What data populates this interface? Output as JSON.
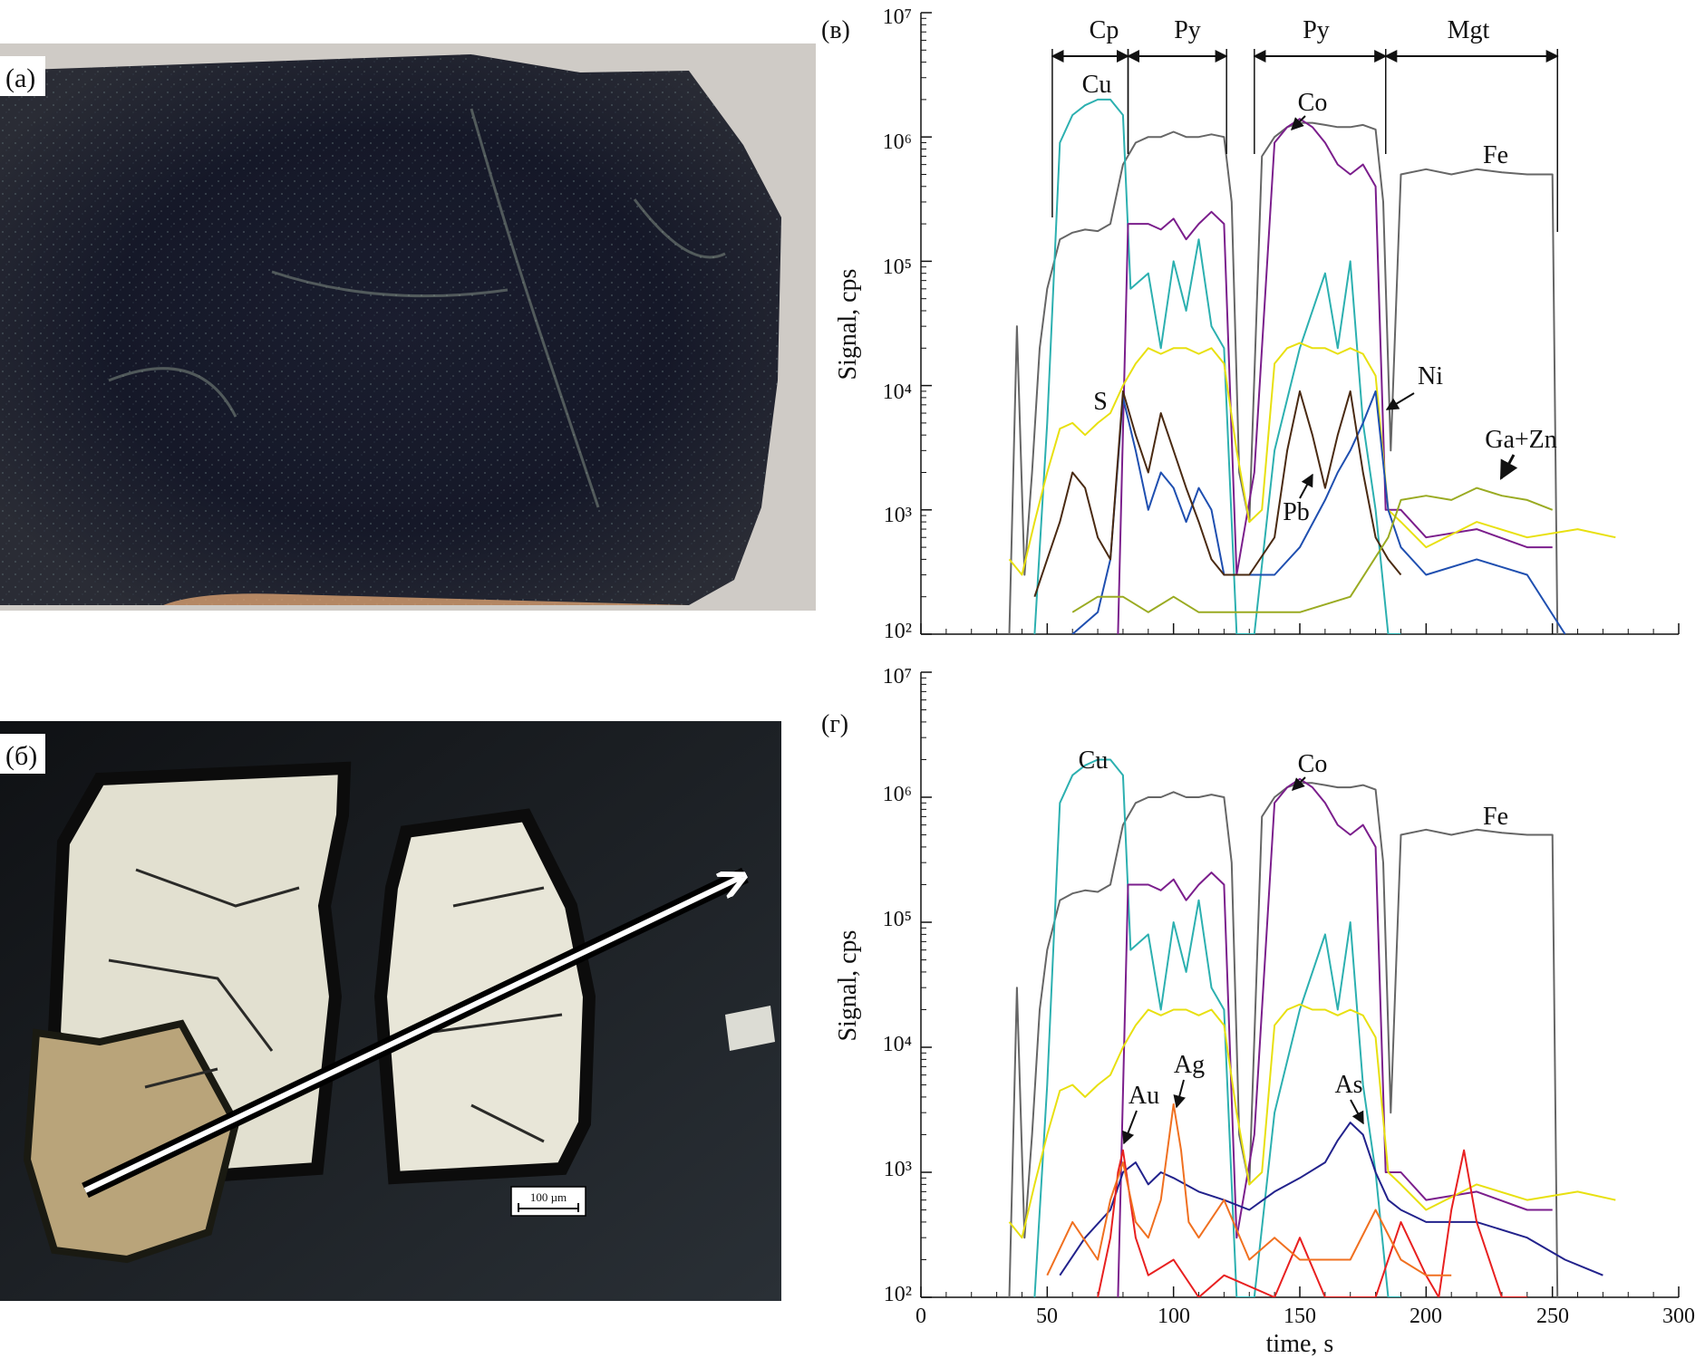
{
  "panels": {
    "a": {
      "label": "(a)"
    },
    "b": {
      "label": "(б)",
      "scalebar": "100 µm"
    },
    "v": {
      "label": "(в)",
      "ylabel": "Signal, cps",
      "ticks": {
        "y": [
          "10²",
          "10³",
          "10⁴",
          "10⁵",
          "10⁶",
          "10⁷"
        ]
      },
      "zones": [
        {
          "label": "Cp",
          "from": 52,
          "to": 82
        },
        {
          "label": "Py",
          "from": 82,
          "to": 121
        },
        {
          "label": "Py",
          "from": 132,
          "to": 184
        },
        {
          "label": "Mgt",
          "from": 184,
          "to": 252
        }
      ],
      "labels": {
        "cu": "Cu",
        "co": "Co",
        "fe": "Fe",
        "s": "S",
        "ni": "Ni",
        "pb": "Pb",
        "gazn": "Ga+Zn"
      }
    },
    "g": {
      "label": "(г)",
      "ylabel": "Signal, cps",
      "xlabel": "time, s",
      "ticks": {
        "y": [
          "10²",
          "10³",
          "10⁴",
          "10⁵",
          "10⁶",
          "10⁷"
        ],
        "x": [
          "0",
          "50",
          "100",
          "150",
          "200",
          "250",
          "300"
        ]
      },
      "labels": {
        "cu": "Cu",
        "co": "Co",
        "fe": "Fe",
        "au": "Au",
        "ag": "Ag",
        "as": "As"
      }
    }
  },
  "chart_data": [
    {
      "type": "line",
      "panel": "(в)",
      "ylabel": "Signal, cps",
      "yscale": "log",
      "ylim": [
        100,
        10000000
      ],
      "xlim": [
        0,
        300
      ],
      "grid": false,
      "series": [
        {
          "name": "Fe",
          "color": "#666666",
          "x": [
            35,
            38,
            41,
            44,
            47,
            50,
            55,
            60,
            65,
            70,
            75,
            80,
            85,
            90,
            95,
            100,
            105,
            110,
            115,
            120,
            123,
            126,
            130,
            135,
            140,
            145,
            150,
            155,
            160,
            165,
            170,
            175,
            180,
            183,
            186,
            190,
            200,
            210,
            220,
            230,
            240,
            250,
            252
          ],
          "y": [
            100,
            30000,
            300,
            2000,
            20000,
            60000,
            150000,
            170000,
            180000,
            175000,
            200000,
            600000,
            900000,
            1000000,
            1000000,
            1100000,
            1000000,
            1000000,
            1050000,
            1000000,
            300000,
            2000,
            800,
            700000,
            1000000,
            1200000,
            1300000,
            1300000,
            1250000,
            1200000,
            1200000,
            1250000,
            1150000,
            300000,
            3000,
            500000,
            550000,
            500000,
            550000,
            520000,
            500000,
            500000,
            100
          ]
        },
        {
          "name": "Cu",
          "color": "#2cb0b0",
          "x": [
            45,
            50,
            55,
            60,
            65,
            70,
            75,
            80,
            83,
            90,
            95,
            100,
            105,
            110,
            115,
            120,
            125,
            132,
            140,
            150,
            160,
            165,
            170,
            175,
            180,
            185,
            190
          ],
          "y": [
            100,
            5000,
            900000,
            1500000,
            1800000,
            2000000,
            2000000,
            1500000,
            60000,
            80000,
            20000,
            100000,
            40000,
            150000,
            30000,
            20000,
            100,
            100,
            3000,
            20000,
            80000,
            20000,
            100000,
            5000,
            1000,
            100,
            100
          ]
        },
        {
          "name": "Co",
          "color": "#7b1e8c",
          "x": [
            78,
            82,
            90,
            95,
            100,
            105,
            110,
            115,
            120,
            125,
            132,
            140,
            145,
            150,
            155,
            160,
            165,
            170,
            175,
            180,
            184,
            190,
            200,
            220,
            240,
            250
          ],
          "y": [
            100,
            200000,
            200000,
            180000,
            220000,
            150000,
            200000,
            250000,
            200000,
            300,
            2000,
            900000,
            1200000,
            1400000,
            1200000,
            900000,
            600000,
            500000,
            600000,
            400000,
            1000,
            1000,
            600,
            700,
            500,
            500
          ]
        },
        {
          "name": "S",
          "color": "#e8e010",
          "x": [
            35,
            40,
            45,
            50,
            55,
            60,
            65,
            70,
            75,
            80,
            85,
            90,
            95,
            100,
            105,
            110,
            115,
            120,
            125,
            130,
            135,
            140,
            145,
            150,
            155,
            160,
            165,
            170,
            175,
            180,
            185,
            190,
            200,
            220,
            240,
            260,
            275
          ],
          "y": [
            400,
            300,
            800,
            2000,
            4500,
            5000,
            4000,
            5000,
            6000,
            10000,
            15000,
            20000,
            18000,
            20000,
            20000,
            18000,
            20000,
            15000,
            3000,
            800,
            1000,
            15000,
            20000,
            22000,
            20000,
            20000,
            18000,
            20000,
            18000,
            12000,
            1000,
            800,
            500,
            800,
            600,
            700,
            600
          ]
        },
        {
          "name": "Ni",
          "color": "#1f4fb0",
          "x": [
            60,
            70,
            75,
            80,
            85,
            90,
            95,
            100,
            105,
            110,
            115,
            120,
            140,
            150,
            160,
            165,
            170,
            175,
            180,
            185,
            190,
            200,
            220,
            240,
            255
          ],
          "y": [
            100,
            150,
            400,
            8000,
            3000,
            1000,
            2000,
            1500,
            800,
            1500,
            1000,
            300,
            300,
            500,
            1200,
            2000,
            3000,
            5000,
            9000,
            1000,
            500,
            300,
            400,
            300,
            100
          ]
        },
        {
          "name": "Pb",
          "color": "#4a2a12",
          "x": [
            45,
            50,
            55,
            60,
            65,
            70,
            75,
            80,
            85,
            90,
            95,
            100,
            105,
            110,
            115,
            120,
            130,
            140,
            145,
            150,
            155,
            160,
            165,
            170,
            175,
            180,
            185,
            190
          ],
          "y": [
            200,
            400,
            800,
            2000,
            1500,
            600,
            400,
            9000,
            4000,
            2000,
            6000,
            3000,
            1500,
            800,
            400,
            300,
            300,
            600,
            3000,
            9000,
            4000,
            1500,
            4000,
            9000,
            2000,
            600,
            400,
            300
          ]
        },
        {
          "name": "Ga+Zn",
          "color": "#9aab22",
          "x": [
            60,
            70,
            80,
            90,
            100,
            110,
            120,
            130,
            150,
            170,
            185,
            190,
            200,
            210,
            220,
            230,
            240,
            250
          ],
          "y": [
            150,
            200,
            200,
            150,
            200,
            150,
            150,
            150,
            150,
            200,
            600,
            1200,
            1300,
            1200,
            1500,
            1300,
            1200,
            1000
          ]
        }
      ]
    },
    {
      "type": "line",
      "panel": "(г)",
      "ylabel": "Signal, cps",
      "xlabel": "time, s",
      "yscale": "log",
      "ylim": [
        100,
        10000000
      ],
      "xlim": [
        0,
        300
      ],
      "grid": false,
      "series": [
        {
          "name": "Fe",
          "color": "#666666",
          "x": [
            35,
            38,
            41,
            44,
            47,
            50,
            55,
            60,
            65,
            70,
            75,
            80,
            85,
            90,
            95,
            100,
            105,
            110,
            115,
            120,
            123,
            126,
            130,
            135,
            140,
            145,
            150,
            155,
            160,
            165,
            170,
            175,
            180,
            183,
            186,
            190,
            200,
            210,
            220,
            230,
            240,
            250,
            252
          ],
          "y": [
            100,
            30000,
            300,
            2000,
            20000,
            60000,
            150000,
            170000,
            180000,
            175000,
            200000,
            600000,
            900000,
            1000000,
            1000000,
            1100000,
            1000000,
            1000000,
            1050000,
            1000000,
            300000,
            2000,
            800,
            700000,
            1000000,
            1200000,
            1300000,
            1300000,
            1250000,
            1200000,
            1200000,
            1250000,
            1150000,
            300000,
            3000,
            500000,
            550000,
            500000,
            550000,
            520000,
            500000,
            500000,
            100
          ]
        },
        {
          "name": "Cu",
          "color": "#2cb0b0",
          "x": [
            45,
            50,
            55,
            60,
            65,
            70,
            75,
            80,
            83,
            90,
            95,
            100,
            105,
            110,
            115,
            120,
            125,
            132,
            140,
            150,
            160,
            165,
            170,
            175,
            180,
            185,
            190
          ],
          "y": [
            100,
            5000,
            900000,
            1500000,
            1800000,
            2000000,
            2000000,
            1500000,
            60000,
            80000,
            20000,
            100000,
            40000,
            150000,
            30000,
            20000,
            100,
            100,
            3000,
            20000,
            80000,
            20000,
            100000,
            5000,
            1000,
            100,
            100
          ]
        },
        {
          "name": "Co",
          "color": "#7b1e8c",
          "x": [
            78,
            82,
            90,
            95,
            100,
            105,
            110,
            115,
            120,
            125,
            132,
            140,
            145,
            150,
            155,
            160,
            165,
            170,
            175,
            180,
            184,
            190,
            200,
            220,
            240,
            250
          ],
          "y": [
            100,
            200000,
            200000,
            180000,
            220000,
            150000,
            200000,
            250000,
            200000,
            300,
            2000,
            900000,
            1200000,
            1400000,
            1200000,
            900000,
            600000,
            500000,
            600000,
            400000,
            1000,
            1000,
            600,
            700,
            500,
            500
          ]
        },
        {
          "name": "S",
          "color": "#e8e010",
          "x": [
            35,
            40,
            45,
            50,
            55,
            60,
            65,
            70,
            75,
            80,
            85,
            90,
            95,
            100,
            105,
            110,
            115,
            120,
            125,
            130,
            135,
            140,
            145,
            150,
            155,
            160,
            165,
            170,
            175,
            180,
            185,
            190,
            200,
            220,
            240,
            260,
            275
          ],
          "y": [
            400,
            300,
            800,
            2000,
            4500,
            5000,
            4000,
            5000,
            6000,
            10000,
            15000,
            20000,
            18000,
            20000,
            20000,
            18000,
            20000,
            15000,
            3000,
            800,
            1000,
            15000,
            20000,
            22000,
            20000,
            20000,
            18000,
            20000,
            18000,
            12000,
            1000,
            800,
            500,
            800,
            600,
            700,
            600
          ]
        },
        {
          "name": "As",
          "color": "#22228c",
          "x": [
            55,
            65,
            75,
            80,
            85,
            90,
            95,
            100,
            110,
            120,
            130,
            140,
            150,
            160,
            165,
            170,
            175,
            180,
            185,
            190,
            200,
            220,
            240,
            255,
            270
          ],
          "y": [
            150,
            300,
            500,
            1000,
            1200,
            800,
            1000,
            900,
            700,
            600,
            500,
            700,
            900,
            1200,
            1800,
            2500,
            2000,
            1000,
            600,
            500,
            400,
            400,
            300,
            200,
            150
          ]
        },
        {
          "name": "Au",
          "color": "#e82020",
          "x": [
            70,
            75,
            78,
            80,
            82,
            85,
            90,
            100,
            110,
            120,
            140,
            150,
            160,
            170,
            180,
            185,
            190,
            200,
            205,
            210,
            215,
            220,
            230,
            240
          ],
          "y": [
            100,
            300,
            1000,
            1500,
            800,
            300,
            150,
            200,
            100,
            150,
            100,
            300,
            100,
            100,
            100,
            200,
            400,
            150,
            100,
            500,
            1500,
            400,
            100,
            100
          ]
        },
        {
          "name": "Ag",
          "color": "#f07020",
          "x": [
            50,
            60,
            70,
            75,
            80,
            85,
            90,
            95,
            100,
            103,
            106,
            110,
            120,
            130,
            140,
            150,
            160,
            170,
            180,
            190,
            200,
            210
          ],
          "y": [
            150,
            400,
            200,
            600,
            1200,
            400,
            300,
            600,
            3500,
            1500,
            400,
            300,
            600,
            200,
            300,
            200,
            200,
            200,
            500,
            200,
            150,
            150
          ]
        }
      ]
    }
  ]
}
